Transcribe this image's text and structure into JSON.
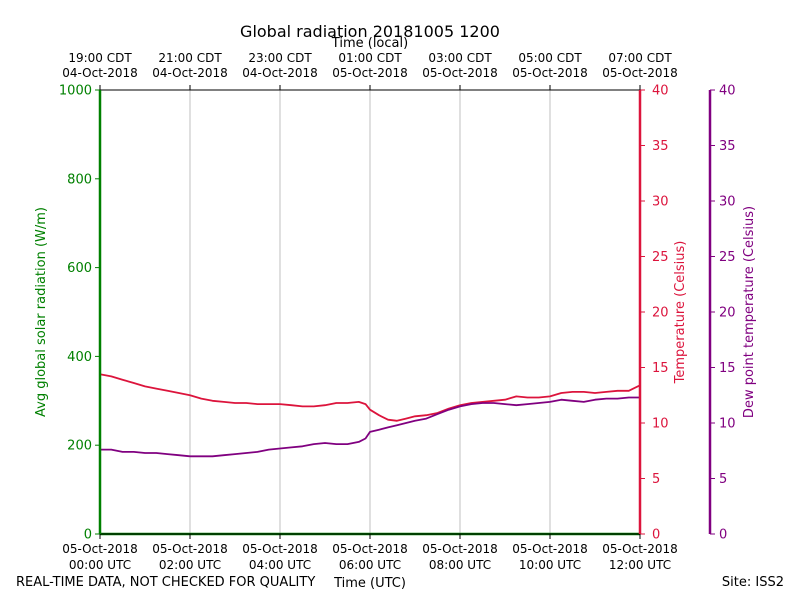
{
  "chart_data": {
    "type": "line",
    "title": "Global radiation 20181005 1200",
    "xlabel_top": "Time (local)",
    "xlabel_bottom": "Time (UTC)",
    "x_hours": [
      0,
      2,
      4,
      6,
      8,
      10,
      12
    ],
    "x_range_hours": [
      0,
      12
    ],
    "x_ticks_bottom": [
      {
        "date": "05-Oct-2018",
        "time": "00:00 UTC"
      },
      {
        "date": "05-Oct-2018",
        "time": "02:00 UTC"
      },
      {
        "date": "05-Oct-2018",
        "time": "04:00 UTC"
      },
      {
        "date": "05-Oct-2018",
        "time": "06:00 UTC"
      },
      {
        "date": "05-Oct-2018",
        "time": "08:00 UTC"
      },
      {
        "date": "05-Oct-2018",
        "time": "10:00 UTC"
      },
      {
        "date": "05-Oct-2018",
        "time": "12:00 UTC"
      }
    ],
    "x_ticks_top": [
      {
        "time": "19:00 CDT",
        "date": "04-Oct-2018"
      },
      {
        "time": "21:00 CDT",
        "date": "04-Oct-2018"
      },
      {
        "time": "23:00 CDT",
        "date": "04-Oct-2018"
      },
      {
        "time": "01:00 CDT",
        "date": "05-Oct-2018"
      },
      {
        "time": "03:00 CDT",
        "date": "05-Oct-2018"
      },
      {
        "time": "05:00 CDT",
        "date": "05-Oct-2018"
      },
      {
        "time": "07:00 CDT",
        "date": "05-Oct-2018"
      }
    ],
    "grid": "vertical",
    "axes": {
      "left": {
        "label": "Avg global solar radiation (W/m)",
        "range": [
          0,
          1000
        ],
        "ticks": [
          "0",
          "200",
          "400",
          "600",
          "800",
          "1000"
        ],
        "color": "#008000"
      },
      "right": {
        "label": "Temperature (Celsius)",
        "range": [
          0,
          40
        ],
        "ticks": [
          "0",
          "5",
          "10",
          "15",
          "20",
          "25",
          "30",
          "35",
          "40"
        ],
        "color": "#dc143c"
      },
      "right2": {
        "label": "Dew point temperature (Celsius)",
        "range": [
          0,
          40
        ],
        "ticks": [
          "0",
          "5",
          "10",
          "15",
          "20",
          "25",
          "30",
          "35",
          "40"
        ],
        "color": "#800080"
      }
    },
    "series": [
      {
        "name": "Avg global solar radiation",
        "axis": "left",
        "color": "#008000",
        "x": [
          0,
          12
        ],
        "values": [
          0,
          0
        ]
      },
      {
        "name": "Temperature",
        "axis": "right",
        "color": "#dc143c",
        "x": [
          0,
          0.25,
          0.5,
          0.75,
          1.0,
          1.25,
          1.5,
          1.75,
          2.0,
          2.25,
          2.5,
          2.75,
          3.0,
          3.25,
          3.5,
          3.75,
          4.0,
          4.25,
          4.5,
          4.75,
          5.0,
          5.25,
          5.5,
          5.75,
          5.9,
          6.0,
          6.2,
          6.4,
          6.6,
          6.8,
          7.0,
          7.25,
          7.5,
          7.75,
          8.0,
          8.25,
          8.5,
          8.75,
          9.0,
          9.25,
          9.5,
          9.75,
          10.0,
          10.25,
          10.5,
          10.75,
          11.0,
          11.25,
          11.5,
          11.75,
          12.0
        ],
        "values": [
          14.4,
          14.2,
          13.9,
          13.6,
          13.3,
          13.1,
          12.9,
          12.7,
          12.5,
          12.2,
          12.0,
          11.9,
          11.8,
          11.8,
          11.7,
          11.7,
          11.7,
          11.6,
          11.5,
          11.5,
          11.6,
          11.8,
          11.8,
          11.9,
          11.7,
          11.2,
          10.7,
          10.3,
          10.2,
          10.4,
          10.6,
          10.7,
          10.9,
          11.3,
          11.6,
          11.8,
          11.9,
          12.0,
          12.1,
          12.4,
          12.3,
          12.3,
          12.4,
          12.7,
          12.8,
          12.8,
          12.7,
          12.8,
          12.9,
          12.9,
          13.4
        ]
      },
      {
        "name": "Dew point temperature",
        "axis": "right2",
        "color": "#800080",
        "x": [
          0,
          0.25,
          0.5,
          0.75,
          1.0,
          1.25,
          1.5,
          1.75,
          2.0,
          2.25,
          2.5,
          2.75,
          3.0,
          3.25,
          3.5,
          3.75,
          4.0,
          4.25,
          4.5,
          4.75,
          5.0,
          5.25,
          5.5,
          5.75,
          5.9,
          6.0,
          6.2,
          6.4,
          6.6,
          6.8,
          7.0,
          7.25,
          7.5,
          7.75,
          8.0,
          8.25,
          8.5,
          8.75,
          9.0,
          9.25,
          9.5,
          9.75,
          10.0,
          10.25,
          10.5,
          10.75,
          11.0,
          11.25,
          11.5,
          11.75,
          12.0
        ],
        "values": [
          7.6,
          7.6,
          7.4,
          7.4,
          7.3,
          7.3,
          7.2,
          7.1,
          7.0,
          7.0,
          7.0,
          7.1,
          7.2,
          7.3,
          7.4,
          7.6,
          7.7,
          7.8,
          7.9,
          8.1,
          8.2,
          8.1,
          8.1,
          8.3,
          8.6,
          9.2,
          9.4,
          9.6,
          9.8,
          10.0,
          10.2,
          10.4,
          10.8,
          11.2,
          11.5,
          11.7,
          11.8,
          11.8,
          11.7,
          11.6,
          11.7,
          11.8,
          11.9,
          12.1,
          12.0,
          11.9,
          12.1,
          12.2,
          12.2,
          12.3,
          12.3
        ]
      }
    ]
  },
  "footer": {
    "left_text": "REAL-TIME DATA, NOT CHECKED FOR QUALITY",
    "right_text": "Site: ISS2"
  }
}
